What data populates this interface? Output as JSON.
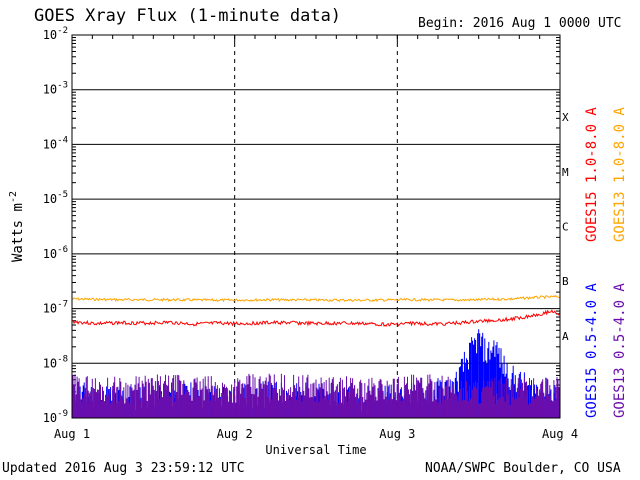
{
  "header": {
    "title": "GOES Xray Flux (1-minute data)",
    "begin": "Begin:  2016 Aug 1 0000 UTC"
  },
  "footer": {
    "updated": "Updated 2016 Aug  3 23:59:12 UTC",
    "credit": "NOAA/SWPC Boulder, CO USA"
  },
  "chart_data": {
    "type": "line",
    "title": "GOES Xray Flux (1-minute data)",
    "xlabel": "Universal Time",
    "ylabel": "Watts m",
    "ylabel_superscript": "-2",
    "x_domain": [
      0,
      3
    ],
    "x_ticks": [
      {
        "value": 0,
        "label": "Aug 1"
      },
      {
        "value": 1,
        "label": "Aug 2"
      },
      {
        "value": 2,
        "label": "Aug 3"
      },
      {
        "value": 3,
        "label": "Aug 4"
      }
    ],
    "y_scale": "log",
    "ylim_exponent": [
      -9,
      -2
    ],
    "y_ticks": [
      {
        "exp": -2,
        "label": "10",
        "sup": "-2"
      },
      {
        "exp": -3,
        "label": "10",
        "sup": "-3"
      },
      {
        "exp": -4,
        "label": "10",
        "sup": "-4"
      },
      {
        "exp": -5,
        "label": "10",
        "sup": "-5"
      },
      {
        "exp": -6,
        "label": "10",
        "sup": "-6"
      },
      {
        "exp": -7,
        "label": "10",
        "sup": "-7"
      },
      {
        "exp": -8,
        "label": "10",
        "sup": "-8"
      },
      {
        "exp": -9,
        "label": "10",
        "sup": "-9"
      }
    ],
    "flare_classes": [
      {
        "label": "X",
        "exp": -3.5
      },
      {
        "label": "M",
        "exp": -4.5
      },
      {
        "label": "C",
        "exp": -5.5
      },
      {
        "label": "B",
        "exp": -6.5
      },
      {
        "label": "A",
        "exp": -7.5
      }
    ],
    "grid": {
      "horizontal": true,
      "vertical_dashed_at": [
        1,
        2
      ]
    },
    "series": [
      {
        "name": "GOES15 1.0-8.0 A",
        "color": "#ff0000",
        "x": [
          0,
          0.15,
          0.3,
          0.45,
          0.6,
          0.75,
          0.9,
          1.05,
          1.2,
          1.35,
          1.5,
          1.65,
          1.8,
          1.95,
          2.1,
          2.25,
          2.4,
          2.55,
          2.7,
          2.8,
          2.9,
          2.95,
          3.0
        ],
        "values": [
          5.8e-08,
          5.3e-08,
          5.5e-08,
          5.4e-08,
          5.6e-08,
          5.2e-08,
          5.4e-08,
          5.3e-08,
          5.5e-08,
          5.5e-08,
          5.3e-08,
          5.4e-08,
          5.3e-08,
          5.1e-08,
          5.4e-08,
          5.2e-08,
          5.5e-08,
          6e-08,
          6.4e-08,
          7.2e-08,
          8.2e-08,
          9e-08,
          8e-08
        ]
      },
      {
        "name": "GOES13 1.0-8.0 A",
        "color": "#ffa500",
        "x": [
          0,
          0.3,
          0.6,
          0.9,
          1.2,
          1.5,
          1.8,
          2.1,
          2.4,
          2.7,
          2.85,
          3.0
        ],
        "values": [
          1.5e-07,
          1.45e-07,
          1.45e-07,
          1.42e-07,
          1.45e-07,
          1.43e-07,
          1.42e-07,
          1.45e-07,
          1.43e-07,
          1.5e-07,
          1.6e-07,
          1.65e-07
        ]
      },
      {
        "name": "GOES15 0.5-4.0 A",
        "color": "#0000ff",
        "x": [
          0,
          0.3,
          0.6,
          0.9,
          1.2,
          1.5,
          1.8,
          2.1,
          2.35,
          2.42,
          2.5,
          2.55,
          2.6,
          2.65,
          2.7,
          2.8,
          3.0
        ],
        "values": [
          1.5e-09,
          1.3e-09,
          1.5e-09,
          1.3e-09,
          1.5e-09,
          1.4e-09,
          1.3e-09,
          1.4e-09,
          2e-09,
          6e-09,
          1.6e-08,
          8e-09,
          1.2e-08,
          5e-09,
          3e-09,
          2e-09,
          1.5e-09
        ]
      },
      {
        "name": "GOES13 0.5-4.0 A",
        "color": "#6a0dad",
        "x": [
          0,
          0.3,
          0.6,
          0.9,
          1.2,
          1.5,
          1.8,
          2.1,
          2.4,
          2.7,
          3.0
        ],
        "values": [
          2e-09,
          1.8e-09,
          2e-09,
          1.8e-09,
          2.1e-09,
          1.9e-09,
          1.8e-09,
          2e-09,
          1.8e-09,
          1.7e-09,
          1.8e-09
        ]
      }
    ]
  }
}
